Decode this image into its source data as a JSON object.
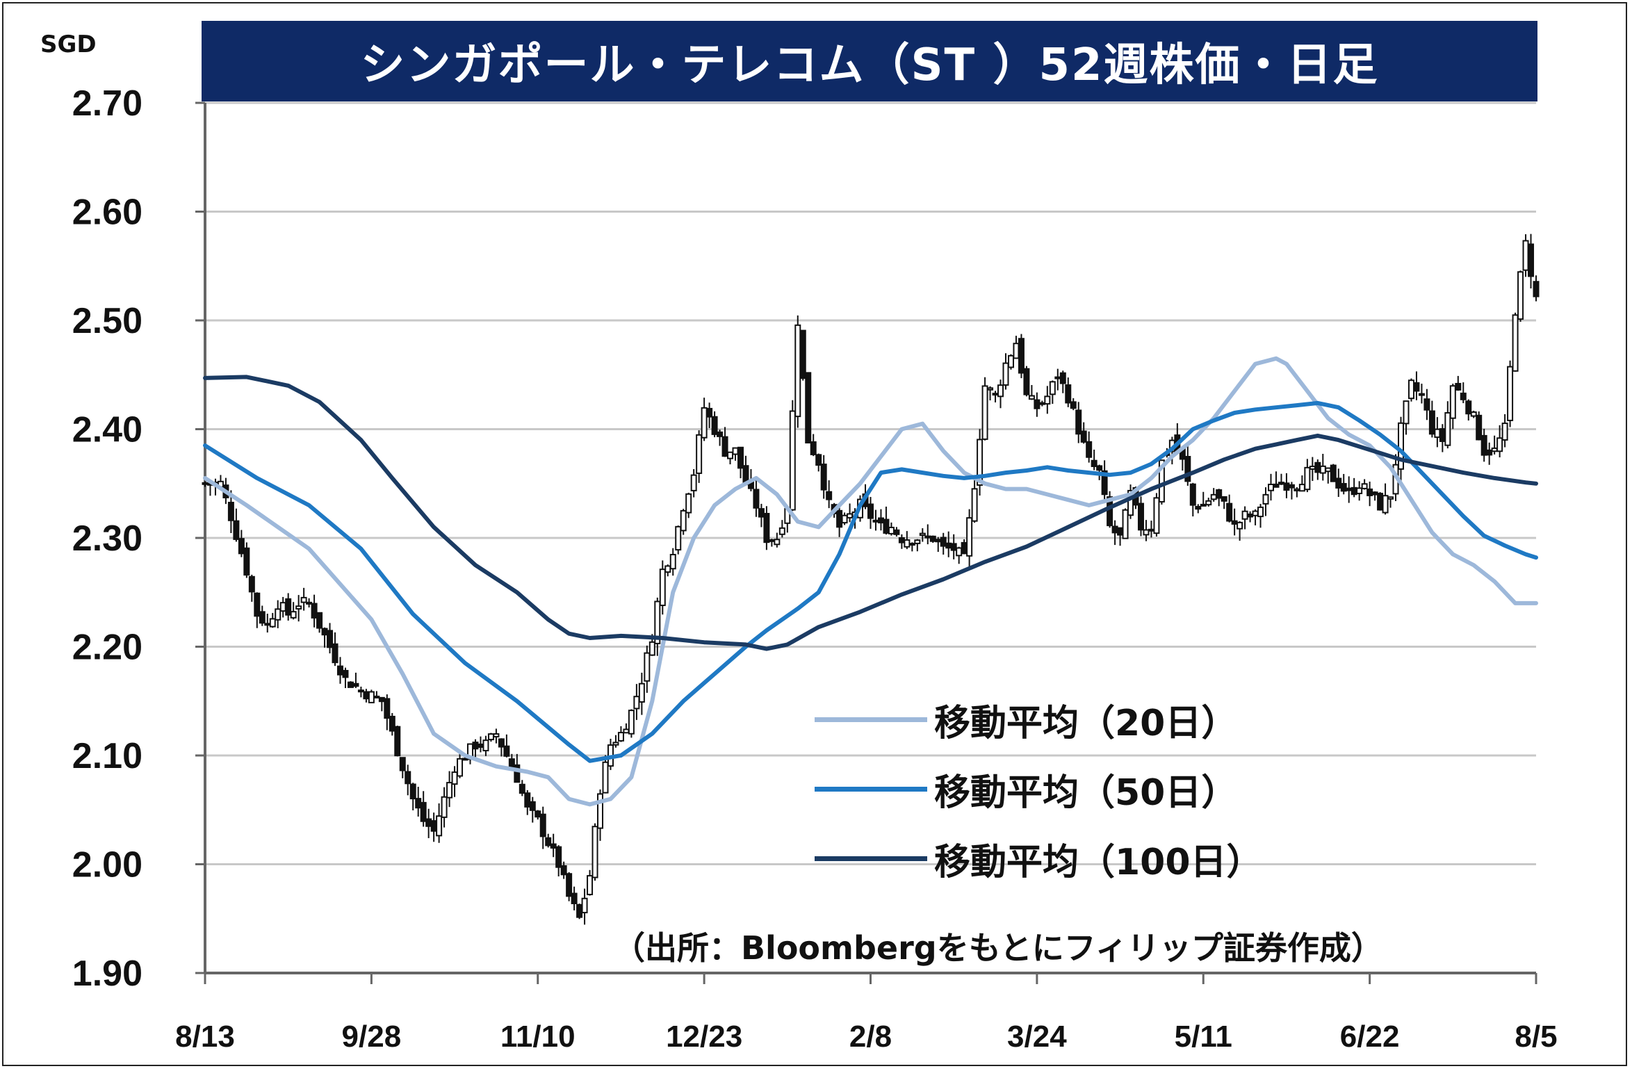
{
  "title": "シンガポール・テレコム（ST ）52週株価・日足",
  "unit_label": "SGD",
  "source_note": "（出所：Bloombergをもとにフィリップ証券作成）",
  "colors": {
    "title_bg": "#0f2a66",
    "ma20": "#9db8da",
    "ma50": "#1f79c4",
    "ma100": "#1b3b63",
    "candle": "#111111",
    "grid": "#c8c8c8"
  },
  "chart_data": {
    "type": "candlestick",
    "title": "シンガポール・テレコム（ST ）52週株価・日足",
    "ylabel": "SGD",
    "ylim": [
      1.9,
      2.7
    ],
    "yticks": [
      "2.70",
      "2.60",
      "2.50",
      "2.40",
      "2.30",
      "2.20",
      "2.10",
      "2.00",
      "1.90"
    ],
    "ytick_values": [
      2.7,
      2.6,
      2.5,
      2.4,
      2.3,
      2.2,
      2.1,
      2.0,
      1.9
    ],
    "xticks": [
      "8/13",
      "9/28",
      "11/10",
      "12/23",
      "2/8",
      "3/24",
      "5/11",
      "6/22",
      "8/5"
    ],
    "xtick_index": [
      0,
      32,
      64,
      96,
      128,
      160,
      192,
      224,
      256
    ],
    "x_count": 257,
    "grid": true,
    "legend_position": "lower-right",
    "close_anchors": [
      [
        0,
        2.35
      ],
      [
        3,
        2.35
      ],
      [
        5,
        2.32
      ],
      [
        8,
        2.27
      ],
      [
        10,
        2.23
      ],
      [
        12,
        2.22
      ],
      [
        14,
        2.24
      ],
      [
        16,
        2.23
      ],
      [
        18,
        2.24
      ],
      [
        20,
        2.24
      ],
      [
        22,
        2.22
      ],
      [
        24,
        2.2
      ],
      [
        27,
        2.17
      ],
      [
        30,
        2.16
      ],
      [
        34,
        2.15
      ],
      [
        36,
        2.12
      ],
      [
        38,
        2.09
      ],
      [
        40,
        2.06
      ],
      [
        42,
        2.04
      ],
      [
        44,
        2.03
      ],
      [
        46,
        2.06
      ],
      [
        48,
        2.09
      ],
      [
        50,
        2.1
      ],
      [
        52,
        2.11
      ],
      [
        54,
        2.11
      ],
      [
        56,
        2.12
      ],
      [
        58,
        2.1
      ],
      [
        60,
        2.08
      ],
      [
        62,
        2.05
      ],
      [
        64,
        2.04
      ],
      [
        66,
        2.02
      ],
      [
        68,
        2.0
      ],
      [
        70,
        1.97
      ],
      [
        72,
        1.95
      ],
      [
        74,
        1.99
      ],
      [
        76,
        2.07
      ],
      [
        78,
        2.11
      ],
      [
        80,
        2.12
      ],
      [
        82,
        2.14
      ],
      [
        84,
        2.17
      ],
      [
        86,
        2.21
      ],
      [
        88,
        2.27
      ],
      [
        90,
        2.29
      ],
      [
        92,
        2.33
      ],
      [
        94,
        2.36
      ],
      [
        96,
        2.42
      ],
      [
        98,
        2.4
      ],
      [
        100,
        2.38
      ],
      [
        102,
        2.38
      ],
      [
        104,
        2.35
      ],
      [
        106,
        2.33
      ],
      [
        108,
        2.3
      ],
      [
        110,
        2.3
      ],
      [
        112,
        2.33
      ],
      [
        114,
        2.5
      ],
      [
        116,
        2.39
      ],
      [
        118,
        2.37
      ],
      [
        120,
        2.33
      ],
      [
        122,
        2.31
      ],
      [
        124,
        2.32
      ],
      [
        126,
        2.33
      ],
      [
        128,
        2.32
      ],
      [
        130,
        2.31
      ],
      [
        132,
        2.31
      ],
      [
        134,
        2.3
      ],
      [
        136,
        2.3
      ],
      [
        138,
        2.3
      ],
      [
        140,
        2.3
      ],
      [
        142,
        2.29
      ],
      [
        144,
        2.29
      ],
      [
        146,
        2.28
      ],
      [
        148,
        2.35
      ],
      [
        150,
        2.44
      ],
      [
        152,
        2.43
      ],
      [
        154,
        2.46
      ],
      [
        156,
        2.48
      ],
      [
        158,
        2.43
      ],
      [
        160,
        2.42
      ],
      [
        162,
        2.43
      ],
      [
        164,
        2.45
      ],
      [
        166,
        2.43
      ],
      [
        168,
        2.4
      ],
      [
        170,
        2.37
      ],
      [
        172,
        2.36
      ],
      [
        174,
        2.31
      ],
      [
        176,
        2.3
      ],
      [
        178,
        2.34
      ],
      [
        180,
        2.31
      ],
      [
        182,
        2.31
      ],
      [
        184,
        2.37
      ],
      [
        186,
        2.39
      ],
      [
        188,
        2.37
      ],
      [
        190,
        2.33
      ],
      [
        192,
        2.33
      ],
      [
        194,
        2.34
      ],
      [
        196,
        2.33
      ],
      [
        198,
        2.31
      ],
      [
        200,
        2.32
      ],
      [
        202,
        2.32
      ],
      [
        204,
        2.34
      ],
      [
        206,
        2.35
      ],
      [
        208,
        2.35
      ],
      [
        210,
        2.35
      ],
      [
        212,
        2.36
      ],
      [
        214,
        2.36
      ],
      [
        216,
        2.36
      ],
      [
        218,
        2.35
      ],
      [
        220,
        2.34
      ],
      [
        222,
        2.35
      ],
      [
        224,
        2.34
      ],
      [
        226,
        2.33
      ],
      [
        228,
        2.34
      ],
      [
        230,
        2.4
      ],
      [
        232,
        2.44
      ],
      [
        234,
        2.43
      ],
      [
        236,
        2.4
      ],
      [
        238,
        2.39
      ],
      [
        240,
        2.44
      ],
      [
        242,
        2.43
      ],
      [
        244,
        2.41
      ],
      [
        246,
        2.38
      ],
      [
        248,
        2.38
      ],
      [
        250,
        2.4
      ],
      [
        252,
        2.51
      ],
      [
        254,
        2.57
      ],
      [
        256,
        2.52
      ]
    ],
    "series": [
      {
        "name": "移動平均（20日）",
        "color": "#9db8da",
        "points": [
          [
            0,
            2.355
          ],
          [
            8,
            2.33
          ],
          [
            20,
            2.29
          ],
          [
            32,
            2.225
          ],
          [
            38,
            2.175
          ],
          [
            44,
            2.12
          ],
          [
            50,
            2.1
          ],
          [
            56,
            2.09
          ],
          [
            62,
            2.085
          ],
          [
            66,
            2.08
          ],
          [
            70,
            2.06
          ],
          [
            74,
            2.055
          ],
          [
            78,
            2.06
          ],
          [
            82,
            2.08
          ],
          [
            86,
            2.15
          ],
          [
            90,
            2.25
          ],
          [
            94,
            2.3
          ],
          [
            98,
            2.33
          ],
          [
            102,
            2.345
          ],
          [
            106,
            2.355
          ],
          [
            110,
            2.34
          ],
          [
            114,
            2.315
          ],
          [
            118,
            2.31
          ],
          [
            122,
            2.33
          ],
          [
            126,
            2.35
          ],
          [
            130,
            2.375
          ],
          [
            134,
            2.4
          ],
          [
            138,
            2.405
          ],
          [
            142,
            2.38
          ],
          [
            146,
            2.36
          ],
          [
            150,
            2.35
          ],
          [
            154,
            2.345
          ],
          [
            158,
            2.345
          ],
          [
            162,
            2.34
          ],
          [
            166,
            2.335
          ],
          [
            170,
            2.33
          ],
          [
            174,
            2.335
          ],
          [
            178,
            2.34
          ],
          [
            182,
            2.355
          ],
          [
            186,
            2.375
          ],
          [
            190,
            2.39
          ],
          [
            194,
            2.41
          ],
          [
            198,
            2.435
          ],
          [
            202,
            2.46
          ],
          [
            206,
            2.465
          ],
          [
            208,
            2.46
          ],
          [
            212,
            2.435
          ],
          [
            216,
            2.41
          ],
          [
            220,
            2.395
          ],
          [
            224,
            2.385
          ],
          [
            228,
            2.365
          ],
          [
            232,
            2.335
          ],
          [
            236,
            2.305
          ],
          [
            240,
            2.285
          ],
          [
            244,
            2.275
          ],
          [
            248,
            2.26
          ],
          [
            252,
            2.24
          ],
          [
            256,
            2.24
          ]
        ]
      },
      {
        "name": "移動平均（50日）",
        "color": "#1f79c4",
        "points": [
          [
            0,
            2.385
          ],
          [
            10,
            2.355
          ],
          [
            20,
            2.33
          ],
          [
            30,
            2.29
          ],
          [
            40,
            2.23
          ],
          [
            50,
            2.185
          ],
          [
            60,
            2.15
          ],
          [
            70,
            2.11
          ],
          [
            74,
            2.095
          ],
          [
            80,
            2.1
          ],
          [
            86,
            2.12
          ],
          [
            92,
            2.15
          ],
          [
            98,
            2.175
          ],
          [
            104,
            2.2
          ],
          [
            108,
            2.215
          ],
          [
            114,
            2.235
          ],
          [
            118,
            2.25
          ],
          [
            122,
            2.285
          ],
          [
            126,
            2.33
          ],
          [
            130,
            2.36
          ],
          [
            134,
            2.363
          ],
          [
            138,
            2.36
          ],
          [
            142,
            2.357
          ],
          [
            146,
            2.355
          ],
          [
            150,
            2.357
          ],
          [
            154,
            2.36
          ],
          [
            158,
            2.362
          ],
          [
            162,
            2.365
          ],
          [
            166,
            2.362
          ],
          [
            170,
            2.36
          ],
          [
            174,
            2.358
          ],
          [
            178,
            2.36
          ],
          [
            182,
            2.368
          ],
          [
            186,
            2.382
          ],
          [
            190,
            2.4
          ],
          [
            194,
            2.408
          ],
          [
            198,
            2.415
          ],
          [
            202,
            2.418
          ],
          [
            206,
            2.42
          ],
          [
            210,
            2.422
          ],
          [
            214,
            2.424
          ],
          [
            218,
            2.42
          ],
          [
            222,
            2.408
          ],
          [
            226,
            2.395
          ],
          [
            230,
            2.38
          ],
          [
            234,
            2.36
          ],
          [
            238,
            2.34
          ],
          [
            242,
            2.32
          ],
          [
            246,
            2.302
          ],
          [
            250,
            2.293
          ],
          [
            254,
            2.285
          ],
          [
            256,
            2.282
          ]
        ]
      },
      {
        "name": "移動平均（100日）",
        "color": "#1b3b63",
        "points": [
          [
            0,
            2.447
          ],
          [
            8,
            2.448
          ],
          [
            16,
            2.44
          ],
          [
            22,
            2.425
          ],
          [
            30,
            2.39
          ],
          [
            36,
            2.355
          ],
          [
            44,
            2.31
          ],
          [
            52,
            2.275
          ],
          [
            60,
            2.25
          ],
          [
            66,
            2.225
          ],
          [
            70,
            2.212
          ],
          [
            74,
            2.208
          ],
          [
            80,
            2.21
          ],
          [
            88,
            2.208
          ],
          [
            96,
            2.204
          ],
          [
            104,
            2.202
          ],
          [
            108,
            2.198
          ],
          [
            112,
            2.202
          ],
          [
            118,
            2.218
          ],
          [
            126,
            2.232
          ],
          [
            134,
            2.248
          ],
          [
            142,
            2.262
          ],
          [
            150,
            2.278
          ],
          [
            158,
            2.292
          ],
          [
            166,
            2.31
          ],
          [
            174,
            2.328
          ],
          [
            182,
            2.345
          ],
          [
            190,
            2.36
          ],
          [
            196,
            2.372
          ],
          [
            202,
            2.382
          ],
          [
            206,
            2.386
          ],
          [
            210,
            2.39
          ],
          [
            214,
            2.394
          ],
          [
            218,
            2.39
          ],
          [
            222,
            2.384
          ],
          [
            226,
            2.378
          ],
          [
            230,
            2.372
          ],
          [
            236,
            2.366
          ],
          [
            242,
            2.36
          ],
          [
            248,
            2.355
          ],
          [
            254,
            2.351
          ],
          [
            256,
            2.35
          ]
        ]
      }
    ]
  }
}
